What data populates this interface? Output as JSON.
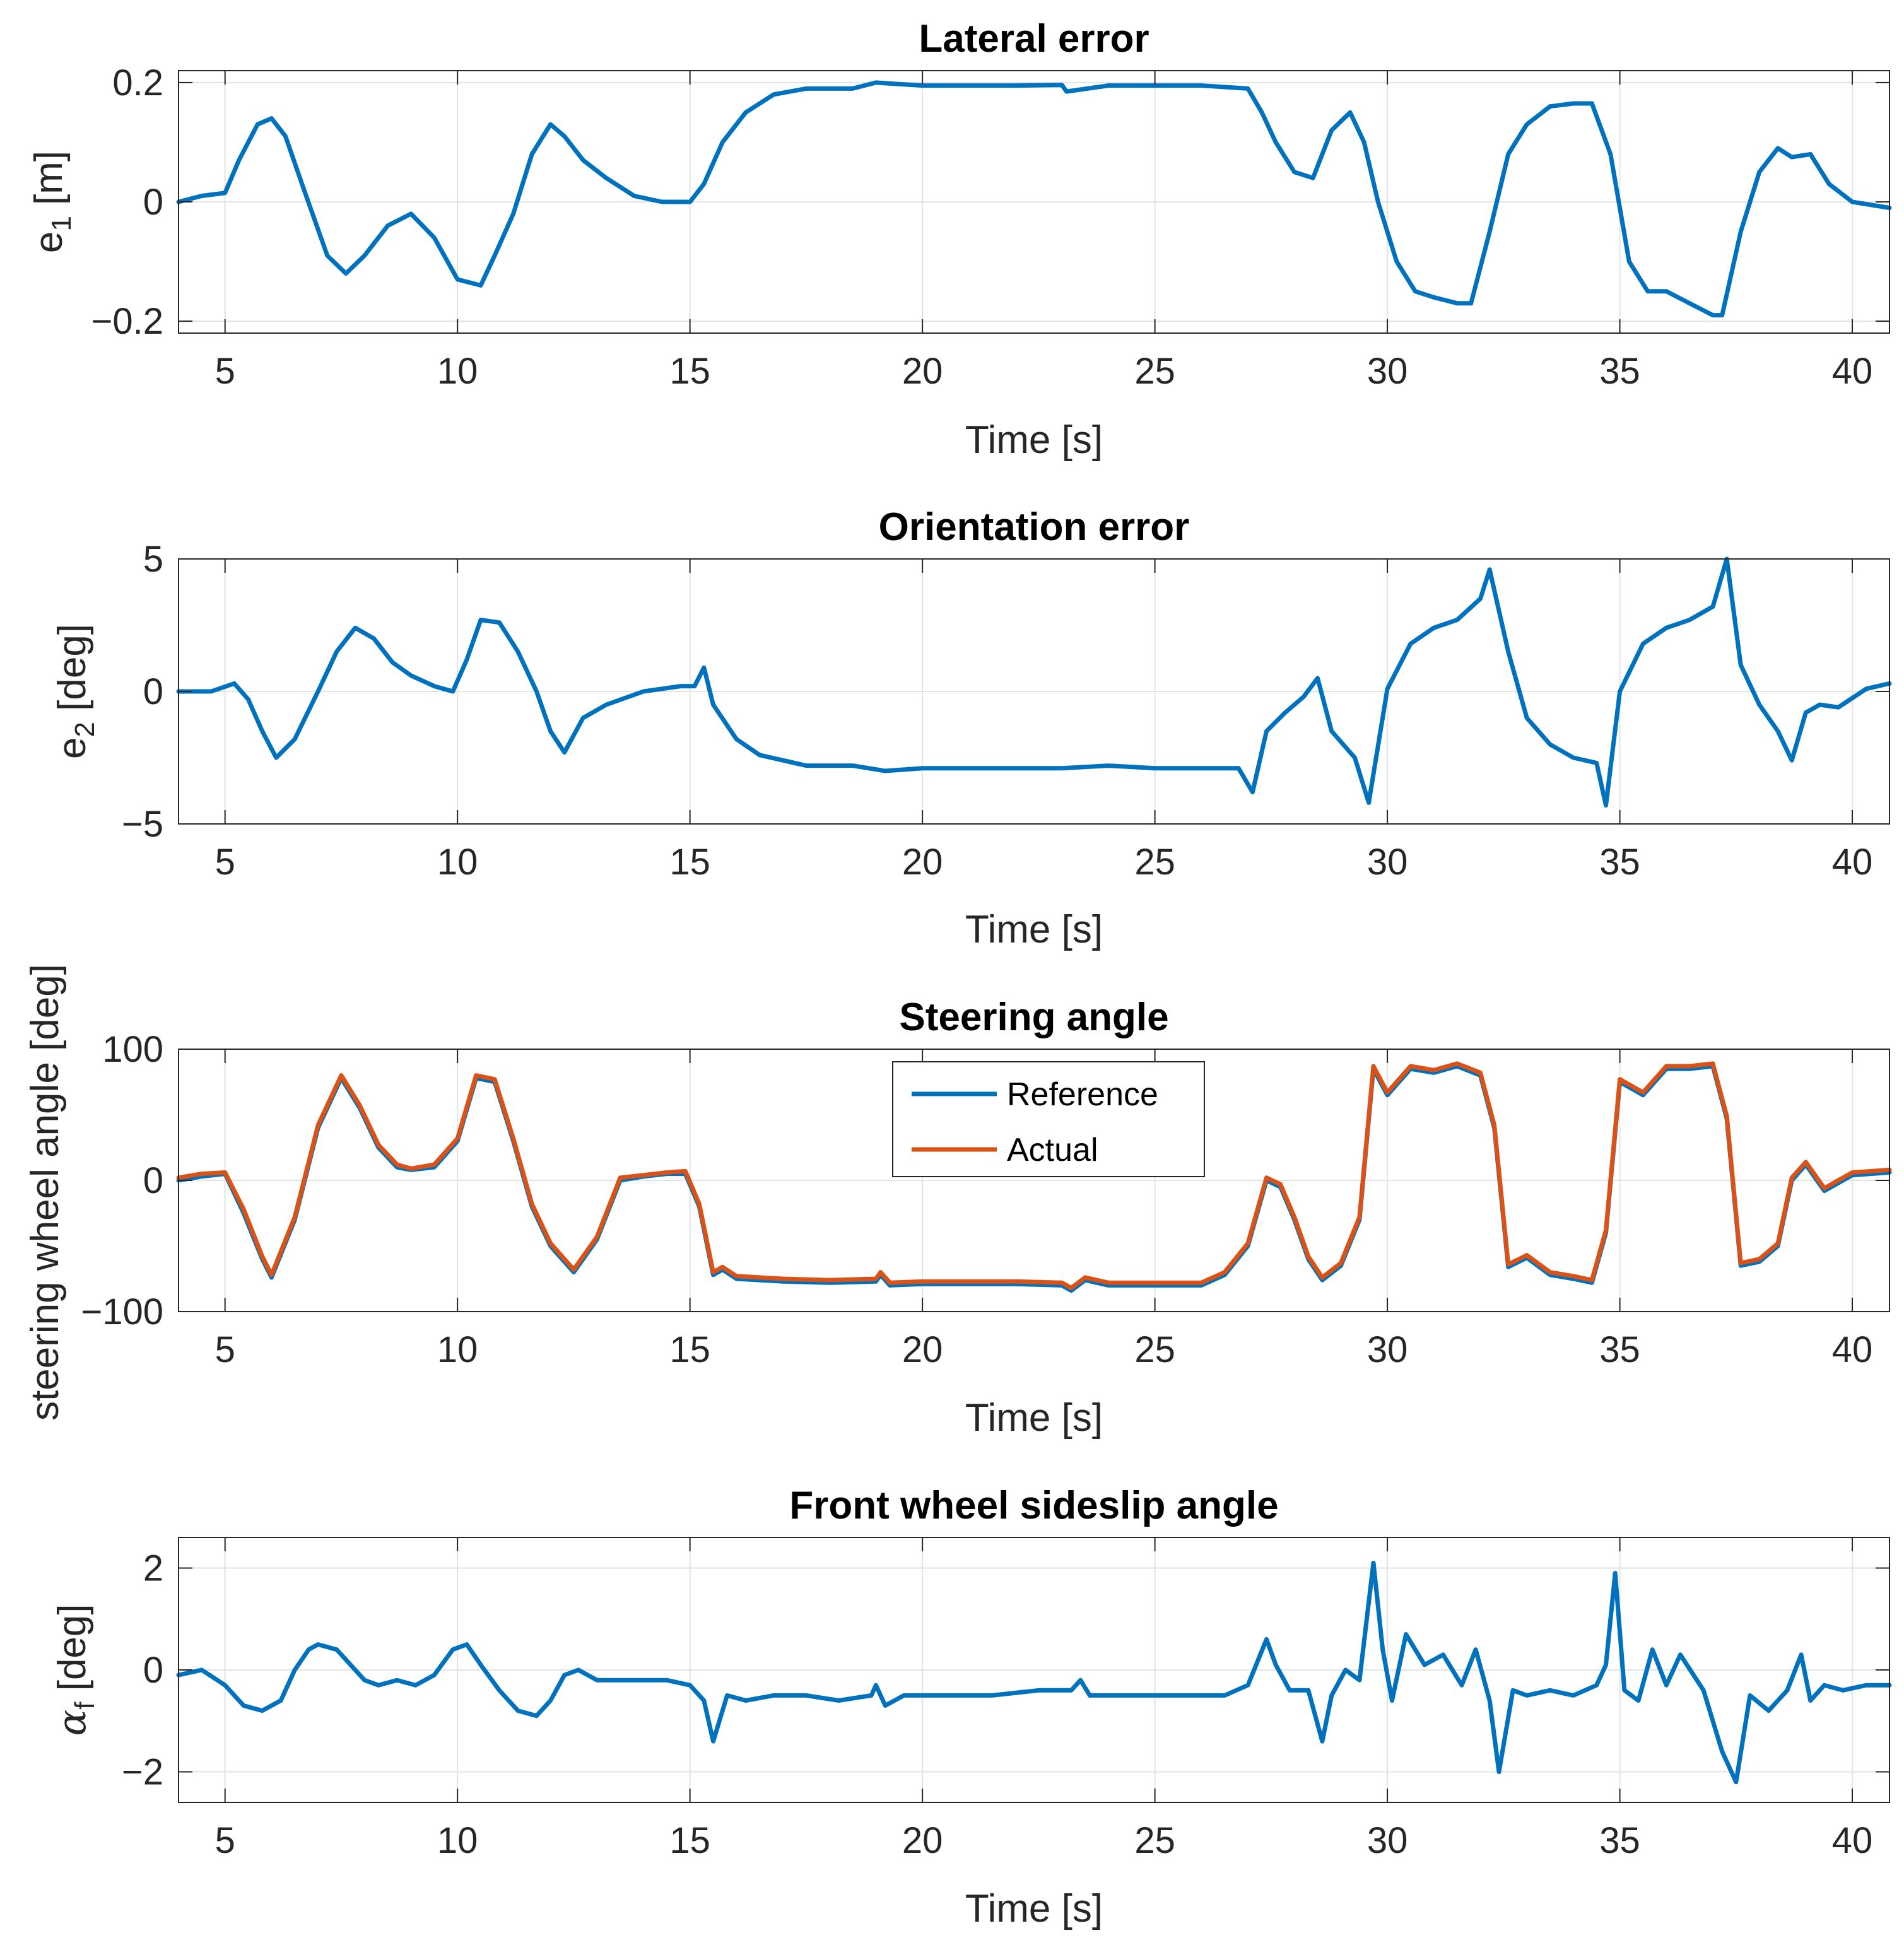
{
  "chart_data": [
    {
      "id": "lateral",
      "type": "line",
      "title": "Lateral error",
      "xlabel": "Time [s]",
      "ylabel_main": "e",
      "ylabel_sub": "1",
      "ylabel_tail": " [m]",
      "xlim": [
        4,
        40.8
      ],
      "ylim": [
        -0.22,
        0.22
      ],
      "xticks": [
        5,
        10,
        15,
        20,
        25,
        30,
        35,
        40
      ],
      "yticks": [
        -0.2,
        0,
        0.2
      ],
      "ytick_labels": [
        "−0.2",
        "0",
        "0.2"
      ],
      "grid": true,
      "series": [
        {
          "name": "e1",
          "color": "#0072BD",
          "x": [
            4,
            4.5,
            5,
            5.3,
            5.7,
            6.0,
            6.3,
            6.7,
            7.2,
            7.6,
            8.0,
            8.5,
            9.0,
            9.5,
            10.0,
            10.5,
            10.8,
            11.2,
            11.6,
            12.0,
            12.3,
            12.7,
            13.2,
            13.8,
            14.4,
            15.0,
            15.3,
            15.7,
            16.2,
            16.8,
            17.5,
            18.5,
            19.0,
            20,
            21,
            22,
            23,
            23.1,
            24,
            25,
            26,
            27,
            27.3,
            27.6,
            28.0,
            28.4,
            28.8,
            29.2,
            29.5,
            29.8,
            30.2,
            30.6,
            31.0,
            31.5,
            31.8,
            32.2,
            32.6,
            33.0,
            33.5,
            34.0,
            34.4,
            34.8,
            35.2,
            35.6,
            36.0,
            36.5,
            37.0,
            37.2,
            37.6,
            38.0,
            38.4,
            38.7,
            39.1,
            39.5,
            40.0,
            40.8
          ],
          "y": [
            0.0,
            0.01,
            0.015,
            0.07,
            0.13,
            0.14,
            0.11,
            0.02,
            -0.09,
            -0.12,
            -0.09,
            -0.04,
            -0.02,
            -0.06,
            -0.13,
            -0.14,
            -0.09,
            -0.02,
            0.08,
            0.13,
            0.11,
            0.07,
            0.04,
            0.01,
            0.0,
            0.0,
            0.03,
            0.1,
            0.15,
            0.18,
            0.19,
            0.19,
            0.2,
            0.195,
            0.195,
            0.195,
            0.196,
            0.185,
            0.195,
            0.195,
            0.195,
            0.19,
            0.15,
            0.1,
            0.05,
            0.04,
            0.12,
            0.15,
            0.1,
            0.0,
            -0.1,
            -0.15,
            -0.16,
            -0.17,
            -0.17,
            -0.05,
            0.08,
            0.13,
            0.16,
            0.165,
            0.165,
            0.08,
            -0.1,
            -0.15,
            -0.15,
            -0.17,
            -0.19,
            -0.19,
            -0.05,
            0.05,
            0.09,
            0.075,
            0.08,
            0.03,
            0.0,
            -0.01
          ]
        }
      ]
    },
    {
      "id": "orientation",
      "type": "line",
      "title": "Orientation error",
      "xlabel": "Time [s]",
      "ylabel_main": "e",
      "ylabel_sub": "2",
      "ylabel_tail": " [deg]",
      "xlim": [
        4,
        40.8
      ],
      "ylim": [
        -5,
        5
      ],
      "xticks": [
        5,
        10,
        15,
        20,
        25,
        30,
        35,
        40
      ],
      "yticks": [
        -5,
        0,
        5
      ],
      "ytick_labels": [
        "−5",
        "0",
        "5"
      ],
      "grid": true,
      "series": [
        {
          "name": "e2",
          "color": "#0072BD",
          "x": [
            4,
            4.7,
            5.2,
            5.5,
            5.8,
            6.1,
            6.5,
            7.0,
            7.4,
            7.8,
            8.2,
            8.6,
            9.0,
            9.5,
            9.9,
            10.2,
            10.5,
            10.9,
            11.3,
            11.7,
            12.0,
            12.3,
            12.7,
            13.2,
            14.0,
            14.8,
            15.1,
            15.3,
            15.5,
            16.0,
            16.5,
            17.5,
            18.5,
            19.2,
            20,
            21,
            22,
            23,
            24,
            25,
            26,
            26.8,
            27.1,
            27.4,
            27.8,
            28.2,
            28.5,
            28.8,
            29.3,
            29.6,
            30.0,
            30.5,
            31.0,
            31.5,
            32.0,
            32.2,
            32.6,
            33.0,
            33.5,
            34.0,
            34.5,
            34.7,
            35.0,
            35.5,
            36.0,
            36.5,
            37.0,
            37.3,
            37.6,
            38.0,
            38.4,
            38.7,
            39.0,
            39.3,
            39.7,
            40.3,
            40.8
          ],
          "y": [
            0.0,
            0.0,
            0.3,
            -0.3,
            -1.5,
            -2.5,
            -1.8,
            0.0,
            1.5,
            2.4,
            2.0,
            1.1,
            0.6,
            0.2,
            0.0,
            1.2,
            2.7,
            2.6,
            1.5,
            0.0,
            -1.5,
            -2.3,
            -1.0,
            -0.5,
            0.0,
            0.2,
            0.2,
            0.9,
            -0.5,
            -1.8,
            -2.4,
            -2.8,
            -2.8,
            -3.0,
            -2.9,
            -2.9,
            -2.9,
            -2.9,
            -2.8,
            -2.9,
            -2.9,
            -2.9,
            -3.8,
            -1.5,
            -0.8,
            -0.2,
            0.5,
            -1.5,
            -2.5,
            -4.2,
            0.1,
            1.8,
            2.4,
            2.7,
            3.5,
            4.6,
            1.5,
            -1.0,
            -2.0,
            -2.5,
            -2.7,
            -4.3,
            0.0,
            1.8,
            2.4,
            2.7,
            3.2,
            5.0,
            1.0,
            -0.5,
            -1.5,
            -2.6,
            -0.8,
            -0.5,
            -0.6,
            0.1,
            0.3
          ]
        }
      ]
    },
    {
      "id": "steering",
      "type": "line",
      "title": "Steering angle",
      "xlabel": "Time [s]",
      "ylabel_main": "steering wheel angle  [deg]",
      "ylabel_sub": "",
      "ylabel_tail": "",
      "xlim": [
        4,
        40.8
      ],
      "ylim": [
        -100,
        100
      ],
      "xticks": [
        5,
        10,
        15,
        20,
        25,
        30,
        35,
        40
      ],
      "yticks": [
        -100,
        0,
        100
      ],
      "ytick_labels": [
        "−100",
        "0",
        "100"
      ],
      "grid": true,
      "legend": [
        "Reference",
        "Actual"
      ],
      "legend_placement": "top-center",
      "series": [
        {
          "name": "Reference",
          "color": "#0072BD",
          "x": [
            4,
            4.5,
            5.0,
            5.4,
            5.8,
            6.0,
            6.5,
            7.0,
            7.5,
            7.9,
            8.3,
            8.7,
            9.0,
            9.5,
            10.0,
            10.4,
            10.8,
            11.2,
            11.6,
            12.0,
            12.5,
            13.0,
            13.5,
            14.0,
            14.5,
            14.9,
            15.2,
            15.5,
            15.7,
            16.0,
            17,
            18,
            19.0,
            19.1,
            19.3,
            20,
            21,
            22,
            23,
            23.2,
            23.5,
            24,
            25,
            26,
            26.5,
            27.0,
            27.4,
            27.7,
            28.0,
            28.3,
            28.6,
            29.0,
            29.4,
            29.7,
            30.0,
            30.5,
            31.0,
            31.5,
            32.0,
            32.3,
            32.6,
            33.0,
            33.5,
            34.0,
            34.4,
            34.7,
            35.0,
            35.5,
            36.0,
            36.5,
            37.0,
            37.3,
            37.6,
            38.0,
            38.4,
            38.7,
            39.0,
            39.4,
            40.0,
            40.8
          ],
          "y": [
            0,
            3,
            5,
            -25,
            -60,
            -74,
            -30,
            40,
            78,
            55,
            25,
            10,
            8,
            10,
            30,
            78,
            75,
            30,
            -20,
            -50,
            -70,
            -45,
            0,
            3,
            5,
            5,
            -20,
            -72,
            -68,
            -75,
            -77,
            -78,
            -77,
            -72,
            -80,
            -79,
            -79,
            -79,
            -80,
            -84,
            -76,
            -80,
            -80,
            -80,
            -72,
            -50,
            0,
            -5,
            -30,
            -60,
            -76,
            -65,
            -30,
            85,
            65,
            85,
            82,
            87,
            80,
            40,
            -66,
            -59,
            -72,
            -75,
            -78,
            -40,
            75,
            65,
            85,
            85,
            87,
            47,
            -65,
            -62,
            -50,
            0,
            12,
            -8,
            4,
            6
          ]
        },
        {
          "name": "Actual",
          "color": "#D95319",
          "x": [
            4,
            4.5,
            5.0,
            5.4,
            5.8,
            6.0,
            6.5,
            7.0,
            7.5,
            7.9,
            8.3,
            8.7,
            9.0,
            9.5,
            10.0,
            10.4,
            10.8,
            11.2,
            11.6,
            12.0,
            12.5,
            13.0,
            13.5,
            14.0,
            14.5,
            14.9,
            15.2,
            15.5,
            15.7,
            16.0,
            17,
            18,
            19.0,
            19.1,
            19.3,
            20,
            21,
            22,
            23,
            23.2,
            23.5,
            24,
            25,
            26,
            26.5,
            27.0,
            27.4,
            27.7,
            28.0,
            28.3,
            28.6,
            29.0,
            29.4,
            29.7,
            30.0,
            30.5,
            31.0,
            31.5,
            32.0,
            32.3,
            32.6,
            33.0,
            33.5,
            34.0,
            34.4,
            34.7,
            35.0,
            35.5,
            36.0,
            36.5,
            37.0,
            37.3,
            37.6,
            38.0,
            38.4,
            38.7,
            39.0,
            39.4,
            40.0,
            40.8
          ],
          "y": [
            2,
            5,
            6,
            -22,
            -58,
            -72,
            -28,
            42,
            80,
            57,
            27,
            12,
            9,
            12,
            32,
            80,
            77,
            32,
            -18,
            -48,
            -68,
            -43,
            2,
            4,
            6,
            7,
            -18,
            -70,
            -66,
            -73,
            -75,
            -76,
            -75,
            -70,
            -78,
            -77,
            -77,
            -77,
            -78,
            -82,
            -74,
            -78,
            -78,
            -78,
            -70,
            -48,
            2,
            -3,
            -28,
            -58,
            -74,
            -63,
            -28,
            87,
            67,
            87,
            84,
            89,
            82,
            42,
            -64,
            -57,
            -70,
            -73,
            -76,
            -38,
            77,
            67,
            87,
            87,
            89,
            49,
            -63,
            -60,
            -48,
            2,
            14,
            -6,
            6,
            8
          ]
        }
      ]
    },
    {
      "id": "sideslip",
      "type": "line",
      "title": "Front wheel sideslip angle",
      "xlabel": "Time [s]",
      "ylabel_main": "α",
      "ylabel_sub": "f",
      "ylabel_tail": " [deg]",
      "xlim": [
        4,
        40.8
      ],
      "ylim": [
        -2.6,
        2.6
      ],
      "xticks": [
        5,
        10,
        15,
        20,
        25,
        30,
        35,
        40
      ],
      "yticks": [
        -2,
        0,
        2
      ],
      "ytick_labels": [
        "−2",
        "0",
        "2"
      ],
      "grid": true,
      "series": [
        {
          "name": "alpha_f",
          "color": "#0072BD",
          "x": [
            4,
            4.5,
            5.0,
            5.4,
            5.8,
            6.2,
            6.5,
            6.8,
            7.0,
            7.4,
            7.7,
            8.0,
            8.3,
            8.7,
            9.1,
            9.5,
            9.9,
            10.2,
            10.5,
            10.9,
            11.3,
            11.7,
            12.0,
            12.3,
            12.6,
            13.0,
            13.5,
            14.0,
            14.5,
            15.0,
            15.3,
            15.5,
            15.8,
            16.2,
            16.8,
            17.5,
            18.2,
            18.9,
            19.0,
            19.2,
            19.6,
            20.5,
            21.5,
            22.5,
            23.2,
            23.4,
            23.6,
            24.5,
            25.5,
            26.5,
            27.0,
            27.4,
            27.6,
            27.9,
            28.3,
            28.6,
            28.8,
            29.1,
            29.4,
            29.7,
            29.9,
            30.1,
            30.4,
            30.8,
            31.2,
            31.6,
            31.9,
            32.2,
            32.4,
            32.7,
            33.0,
            33.5,
            34.0,
            34.5,
            34.7,
            34.9,
            35.1,
            35.4,
            35.7,
            36.0,
            36.3,
            36.8,
            37.2,
            37.5,
            37.8,
            38.2,
            38.6,
            38.9,
            39.1,
            39.4,
            39.8,
            40.3,
            40.8
          ],
          "y": [
            -0.1,
            0.0,
            -0.3,
            -0.7,
            -0.8,
            -0.6,
            0.0,
            0.4,
            0.5,
            0.4,
            0.1,
            -0.2,
            -0.3,
            -0.2,
            -0.3,
            -0.1,
            0.4,
            0.5,
            0.1,
            -0.4,
            -0.8,
            -0.9,
            -0.6,
            -0.1,
            0.0,
            -0.2,
            -0.2,
            -0.2,
            -0.2,
            -0.3,
            -0.6,
            -1.4,
            -0.5,
            -0.6,
            -0.5,
            -0.5,
            -0.6,
            -0.5,
            -0.3,
            -0.7,
            -0.5,
            -0.5,
            -0.5,
            -0.4,
            -0.4,
            -0.2,
            -0.5,
            -0.5,
            -0.5,
            -0.5,
            -0.3,
            0.6,
            0.1,
            -0.4,
            -0.4,
            -1.4,
            -0.5,
            0.0,
            -0.2,
            2.1,
            0.4,
            -0.6,
            0.7,
            0.1,
            0.3,
            -0.3,
            0.4,
            -0.6,
            -2.0,
            -0.4,
            -0.5,
            -0.4,
            -0.5,
            -0.3,
            0.1,
            1.9,
            -0.4,
            -0.6,
            0.4,
            -0.3,
            0.3,
            -0.4,
            -1.6,
            -2.2,
            -0.5,
            -0.8,
            -0.4,
            0.3,
            -0.6,
            -0.3,
            -0.4,
            -0.3,
            -0.3
          ]
        }
      ]
    }
  ]
}
